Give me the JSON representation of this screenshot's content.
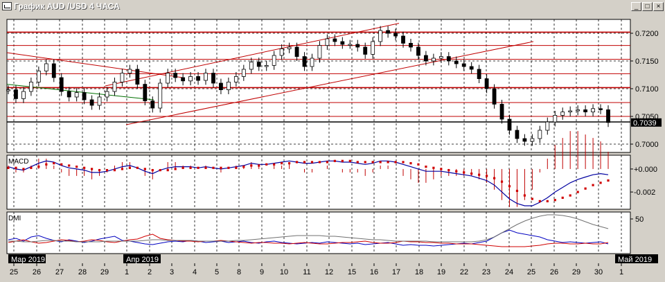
{
  "window": {
    "title": "График AUD /USD  4 ЧАСА",
    "minimize": "_",
    "maximize": "□",
    "close": "×"
  },
  "chart_data": [
    {
      "type": "candlestick",
      "panel": "price",
      "title": "График AUD /USD  4 ЧАСА",
      "ylim": [
        0.6985,
        0.7225
      ],
      "yticks": [
        {
          "label": "0.7200",
          "value": 0.72
        },
        {
          "label": "0.7150",
          "value": 0.715
        },
        {
          "label": "0.7100",
          "value": 0.71
        },
        {
          "label": "0.7050",
          "value": 0.705
        },
        {
          "label": "0.7000",
          "value": 0.7
        }
      ],
      "last_price": {
        "label": "0.7039",
        "value": 0.7039
      },
      "grid": true,
      "horizontal_levels": [
        0.7202,
        0.7178,
        0.7153,
        0.7127,
        0.7102,
        0.7075,
        0.705,
        0.704
      ],
      "trend_lines": [
        {
          "from": [
            "25",
            0.7165
          ],
          "to": [
            "3",
            0.712
          ],
          "color": "#c00000"
        },
        {
          "from": [
            "25",
            0.7108
          ],
          "to": [
            "2",
            0.708
          ],
          "color": "#007000"
        },
        {
          "from": [
            "30",
            0.7105
          ],
          "to": [
            "17",
            0.7218
          ],
          "color": "#c00000"
        },
        {
          "from": [
            "31",
            0.7035
          ],
          "to": [
            "25",
            0.7185
          ],
          "color": "#c00000"
        }
      ],
      "close_series": [
        0.7098,
        0.7082,
        0.7095,
        0.7112,
        0.7132,
        0.7145,
        0.712,
        0.7095,
        0.7085,
        0.7093,
        0.708,
        0.707,
        0.7085,
        0.7095,
        0.7112,
        0.7128,
        0.7135,
        0.7108,
        0.7078,
        0.7065,
        0.711,
        0.7128,
        0.712,
        0.7114,
        0.7122,
        0.7115,
        0.7128,
        0.711,
        0.7098,
        0.7112,
        0.7122,
        0.7135,
        0.7148,
        0.714,
        0.7142,
        0.716,
        0.7172,
        0.7175,
        0.7158,
        0.714,
        0.7155,
        0.7178,
        0.719,
        0.7185,
        0.718,
        0.718,
        0.7175,
        0.7162,
        0.7185,
        0.7205,
        0.72,
        0.7195,
        0.7182,
        0.7175,
        0.716,
        0.715,
        0.7155,
        0.7158,
        0.715,
        0.7145,
        0.714,
        0.7135,
        0.7118,
        0.71,
        0.7072,
        0.7045,
        0.7025,
        0.701,
        0.7005,
        0.701,
        0.7025,
        0.704,
        0.7052,
        0.7058,
        0.706,
        0.7062,
        0.7058,
        0.7064,
        0.7062,
        0.7039
      ]
    },
    {
      "type": "line",
      "panel": "indicator",
      "title": "MACD",
      "ylim": [
        -0.0035,
        0.0012
      ],
      "yticks": [
        {
          "label": "+0.000",
          "value": 0.0
        },
        {
          "label": "-0.002",
          "value": -0.002
        }
      ],
      "series": [
        {
          "name": "MACD",
          "color": "#0000a0",
          "style": "line",
          "values": [
            0.0002,
            0.0,
            -0.0001,
            0.0002,
            0.0005,
            0.0007,
            0.0006,
            0.0003,
            0.0001,
            0.0,
            -0.0001,
            -0.0003,
            -0.0003,
            -0.0002,
            0.0,
            0.0002,
            0.0003,
            0.0001,
            -0.0002,
            -0.0004,
            -0.0001,
            0.0001,
            0.0002,
            0.0002,
            0.0002,
            0.0001,
            0.0002,
            0.0001,
            0.0,
            0.0001,
            0.0002,
            0.0003,
            0.0005,
            0.0004,
            0.0004,
            0.0005,
            0.0006,
            0.0007,
            0.0006,
            0.0005,
            0.0005,
            0.0006,
            0.0007,
            0.0007,
            0.0006,
            0.0006,
            0.0005,
            0.0004,
            0.0005,
            0.0007,
            0.0007,
            0.0006,
            0.0004,
            0.0002,
            0.0,
            -0.0002,
            -0.0002,
            -0.0002,
            -0.0003,
            -0.0004,
            -0.0005,
            -0.0006,
            -0.0008,
            -0.001,
            -0.0014,
            -0.002,
            -0.0026,
            -0.003,
            -0.0032,
            -0.0032,
            -0.0029,
            -0.0025,
            -0.002,
            -0.0016,
            -0.0012,
            -0.0009,
            -0.0007,
            -0.0005,
            -0.0004,
            -0.0005
          ]
        },
        {
          "name": "Signal",
          "color": "#d00000",
          "style": "dots",
          "values": [
            0.0001,
            0.0001,
            0.0,
            0.0001,
            0.0002,
            0.0004,
            0.0005,
            0.0004,
            0.0003,
            0.0002,
            0.0001,
            0.0,
            -0.0001,
            -0.0001,
            -0.0001,
            0.0,
            0.0001,
            0.0001,
            0.0,
            -0.0001,
            -0.0001,
            -0.0001,
            0.0,
            0.0001,
            0.0001,
            0.0001,
            0.0001,
            0.0001,
            0.0001,
            0.0001,
            0.0001,
            0.0002,
            0.0003,
            0.0003,
            0.0004,
            0.0004,
            0.0005,
            0.0005,
            0.0006,
            0.0006,
            0.0006,
            0.0006,
            0.0006,
            0.0007,
            0.0007,
            0.0007,
            0.0006,
            0.0006,
            0.0006,
            0.0006,
            0.0006,
            0.0006,
            0.0006,
            0.0005,
            0.0004,
            0.0002,
            0.0001,
            0.0,
            -0.0001,
            -0.0002,
            -0.0003,
            -0.0004,
            -0.0005,
            -0.0006,
            -0.0008,
            -0.0011,
            -0.0015,
            -0.0019,
            -0.0023,
            -0.0026,
            -0.0028,
            -0.0028,
            -0.0027,
            -0.0025,
            -0.0023,
            -0.002,
            -0.0017,
            -0.0014,
            -0.0012,
            -0.001
          ]
        }
      ]
    },
    {
      "type": "line",
      "panel": "indicator",
      "title": "DMI",
      "ylim": [
        0,
        60
      ],
      "yticks": [
        {
          "label": "50",
          "value": 50
        }
      ],
      "series": [
        {
          "name": "+DI",
          "color": "#0000c0",
          "values": [
            20,
            22,
            18,
            24,
            26,
            22,
            19,
            17,
            20,
            18,
            16,
            18,
            21,
            23,
            25,
            19,
            18,
            16,
            14,
            13,
            15,
            17,
            18,
            17,
            19,
            18,
            16,
            17,
            18,
            16,
            17,
            18,
            16,
            15,
            17,
            18,
            16,
            15,
            14,
            15,
            16,
            15,
            17,
            16,
            15,
            14,
            15,
            13,
            14,
            15,
            16,
            14,
            12,
            13,
            12,
            12,
            11,
            12,
            13,
            14,
            15,
            14,
            16,
            18,
            24,
            30,
            34,
            30,
            28,
            26,
            24,
            20,
            18,
            16,
            17,
            16,
            15,
            16,
            17,
            14
          ]
        },
        {
          "name": "-DI",
          "color": "#d00000",
          "values": [
            16,
            18,
            20,
            17,
            15,
            16,
            18,
            20,
            19,
            17,
            18,
            20,
            19,
            17,
            16,
            18,
            20,
            21,
            25,
            28,
            22,
            20,
            19,
            18,
            18,
            17,
            18,
            18,
            19,
            18,
            17,
            16,
            15,
            16,
            16,
            15,
            15,
            14,
            15,
            16,
            15,
            14,
            14,
            15,
            16,
            16,
            17,
            18,
            16,
            15,
            15,
            16,
            18,
            17,
            17,
            16,
            16,
            15,
            15,
            14,
            14,
            14,
            13,
            12,
            11,
            10,
            10,
            10,
            10,
            11,
            12,
            14,
            15,
            15,
            14,
            14,
            15,
            14,
            14,
            16
          ]
        },
        {
          "name": "ADX",
          "color": "#707070",
          "values": [
            18,
            18,
            17,
            17,
            18,
            19,
            19,
            18,
            18,
            17,
            17,
            17,
            17,
            18,
            18,
            18,
            18,
            18,
            19,
            20,
            20,
            19,
            19,
            19,
            19,
            18,
            18,
            18,
            18,
            18,
            19,
            19,
            20,
            21,
            22,
            23,
            24,
            25,
            26,
            26,
            26,
            26,
            25,
            25,
            24,
            23,
            22,
            21,
            20,
            20,
            19,
            18,
            18,
            18,
            18,
            18,
            17,
            17,
            17,
            17,
            17,
            17,
            18,
            20,
            24,
            30,
            36,
            42,
            47,
            51,
            54,
            56,
            56,
            55,
            53,
            50,
            46,
            42,
            39,
            36
          ]
        }
      ]
    }
  ],
  "xaxis": {
    "day_labels": [
      "25",
      "26",
      "27",
      "28",
      "29",
      "1",
      "2",
      "3",
      "4",
      "5",
      "8",
      "9",
      "10",
      "11",
      "12",
      "15",
      "16",
      "17",
      "18",
      "19",
      "22",
      "23",
      "24",
      "25",
      "26",
      "29",
      "30",
      "1"
    ],
    "month_labels": [
      {
        "label": "Мар 2019",
        "at": "25"
      },
      {
        "label": "Апр 2019",
        "at": "1"
      },
      {
        "label": "Май 2019",
        "at": "1b"
      }
    ]
  }
}
